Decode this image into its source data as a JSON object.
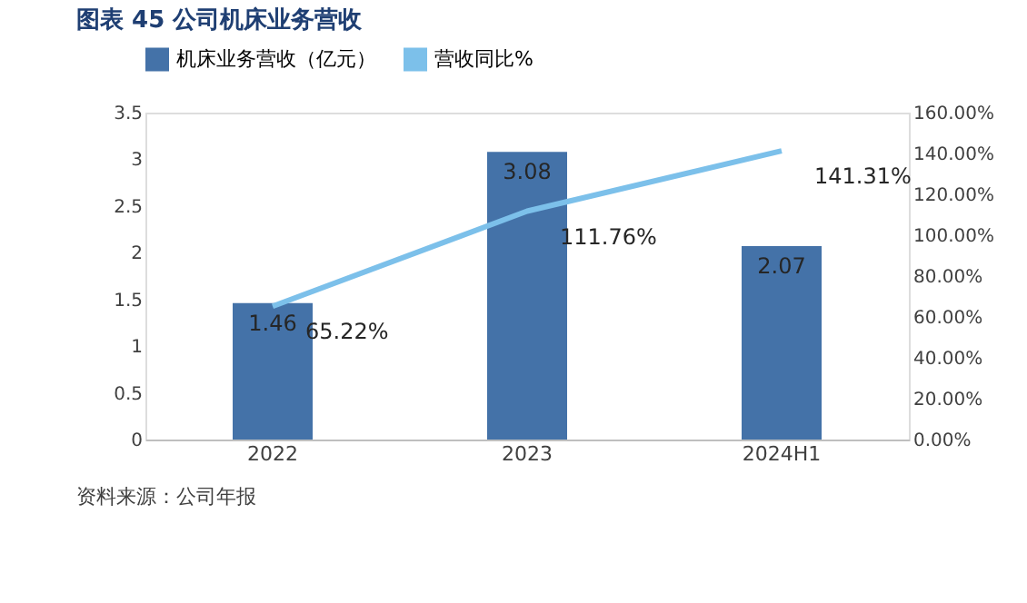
{
  "chart_data": {
    "type": "bar",
    "title": "图表 45 公司机床业务营收",
    "categories": [
      "2022",
      "2023",
      "2024H1"
    ],
    "series": [
      {
        "name": "机床业务营收（亿元）",
        "color": "#4472a8",
        "values": [
          1.46,
          3.08,
          2.07
        ],
        "value_labels": [
          "1.46",
          "3.08",
          "2.07"
        ]
      },
      {
        "name": "营收同比%",
        "type": "line",
        "axis": "y2",
        "color": "#7cc0ea",
        "values": [
          65.22,
          111.76,
          141.31
        ],
        "value_labels": [
          "65.22%",
          "111.76%",
          "141.31%"
        ]
      }
    ],
    "ylim": [
      0,
      3.5
    ],
    "yticks": [
      0,
      0.5,
      1,
      1.5,
      2,
      2.5,
      3,
      3.5
    ],
    "y2lim": [
      0,
      160
    ],
    "y2ticks": [
      {
        "value": 0,
        "label": "0.00%"
      },
      {
        "value": 20,
        "label": "20.00%"
      },
      {
        "value": 40,
        "label": "40.00%"
      },
      {
        "value": 60,
        "label": "60.00%"
      },
      {
        "value": 80,
        "label": "80.00%"
      },
      {
        "value": 100,
        "label": "100.00%"
      },
      {
        "value": 120,
        "label": "120.00%"
      },
      {
        "value": 140,
        "label": "140.00%"
      },
      {
        "value": 160,
        "label": "160.00%"
      }
    ],
    "legend": "top",
    "grid": false,
    "annotations": [
      "资料来源：公司年报"
    ]
  }
}
